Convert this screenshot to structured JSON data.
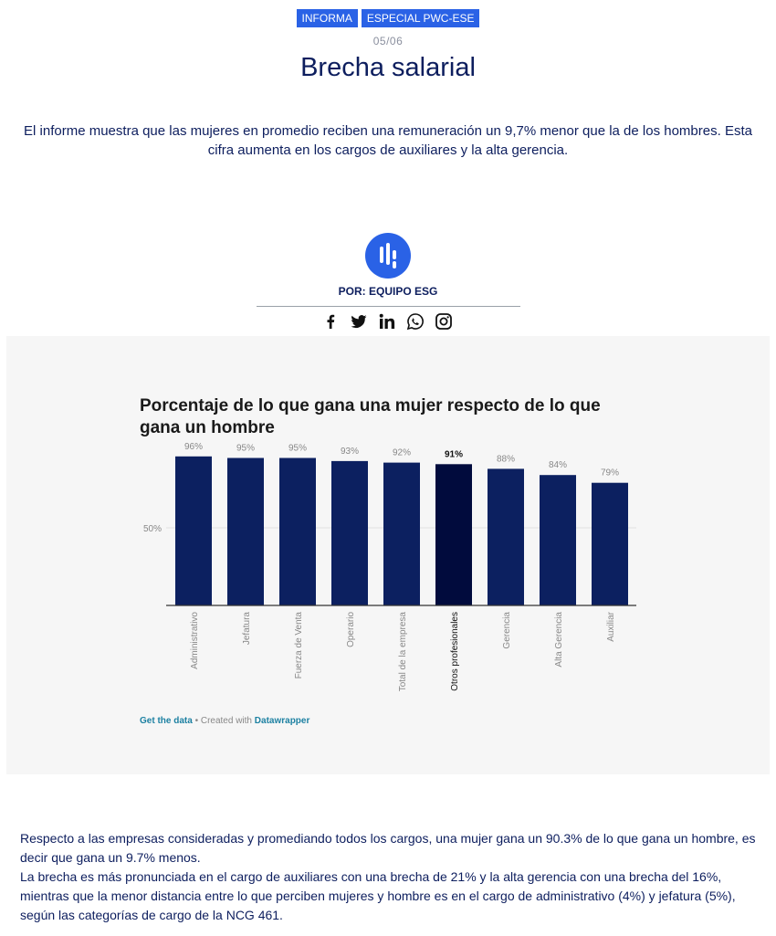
{
  "tags": [
    "INFORMA",
    "ESPECIAL PWC-ESE"
  ],
  "date": "05/06",
  "title": "Brecha salarial",
  "lead": "El informe muestra que las mujeres en promedio reciben una remuneración un 9,7% menor que la de los hombres. Esta cifra aumenta en los cargos de auxiliares y la alta gerencia.",
  "author": "POR: EQUIPO ESG",
  "social": [
    "facebook-icon",
    "twitter-icon",
    "linkedin-icon",
    "whatsapp-icon",
    "instagram-icon"
  ],
  "colors": {
    "accent": "#2a62e6",
    "bar": "#0c2060",
    "bar_highlight": "#010b3d",
    "text_dark": "#0d1e5e"
  },
  "chart_data": {
    "type": "bar",
    "title": "Porcentaje de lo que gana una mujer respecto de lo que gana un hombre",
    "categories": [
      "Administrativo",
      "Jefatura",
      "Fuerza de Venta",
      "Operario",
      "Total de la empresa",
      "Otros profesionales",
      "Gerencia",
      "Alta Gerencia",
      "Auxiliar"
    ],
    "values": [
      96,
      95,
      95,
      93,
      92,
      91,
      88,
      84,
      79
    ],
    "value_labels": [
      "96%",
      "95%",
      "95%",
      "93%",
      "92%",
      "91%",
      "88%",
      "84%",
      "79%"
    ],
    "highlight": "Otros profesionales",
    "ylim": [
      0,
      100
    ],
    "yticks": [
      {
        "value": 50,
        "label": "50%"
      }
    ],
    "grid": true,
    "xlabel": "",
    "ylabel": ""
  },
  "credit": {
    "get_data": "Get the data",
    "separator": " • Created with ",
    "tool": "Datawrapper"
  },
  "body": [
    "Respecto a las empresas consideradas y promediando todos los cargos, una mujer gana un 90.3% de lo que gana un hombre, es decir que gana un 9.7% menos.",
    "La brecha es más pronunciada en el cargo de auxiliares con una brecha de 21% y la alta gerencia con una brecha del 16%, mientras que la menor distancia entre lo que perciben mujeres y hombre es en el cargo de administrativo (4%) y jefatura (5%), según las categorías de cargo de la NCG 461."
  ]
}
